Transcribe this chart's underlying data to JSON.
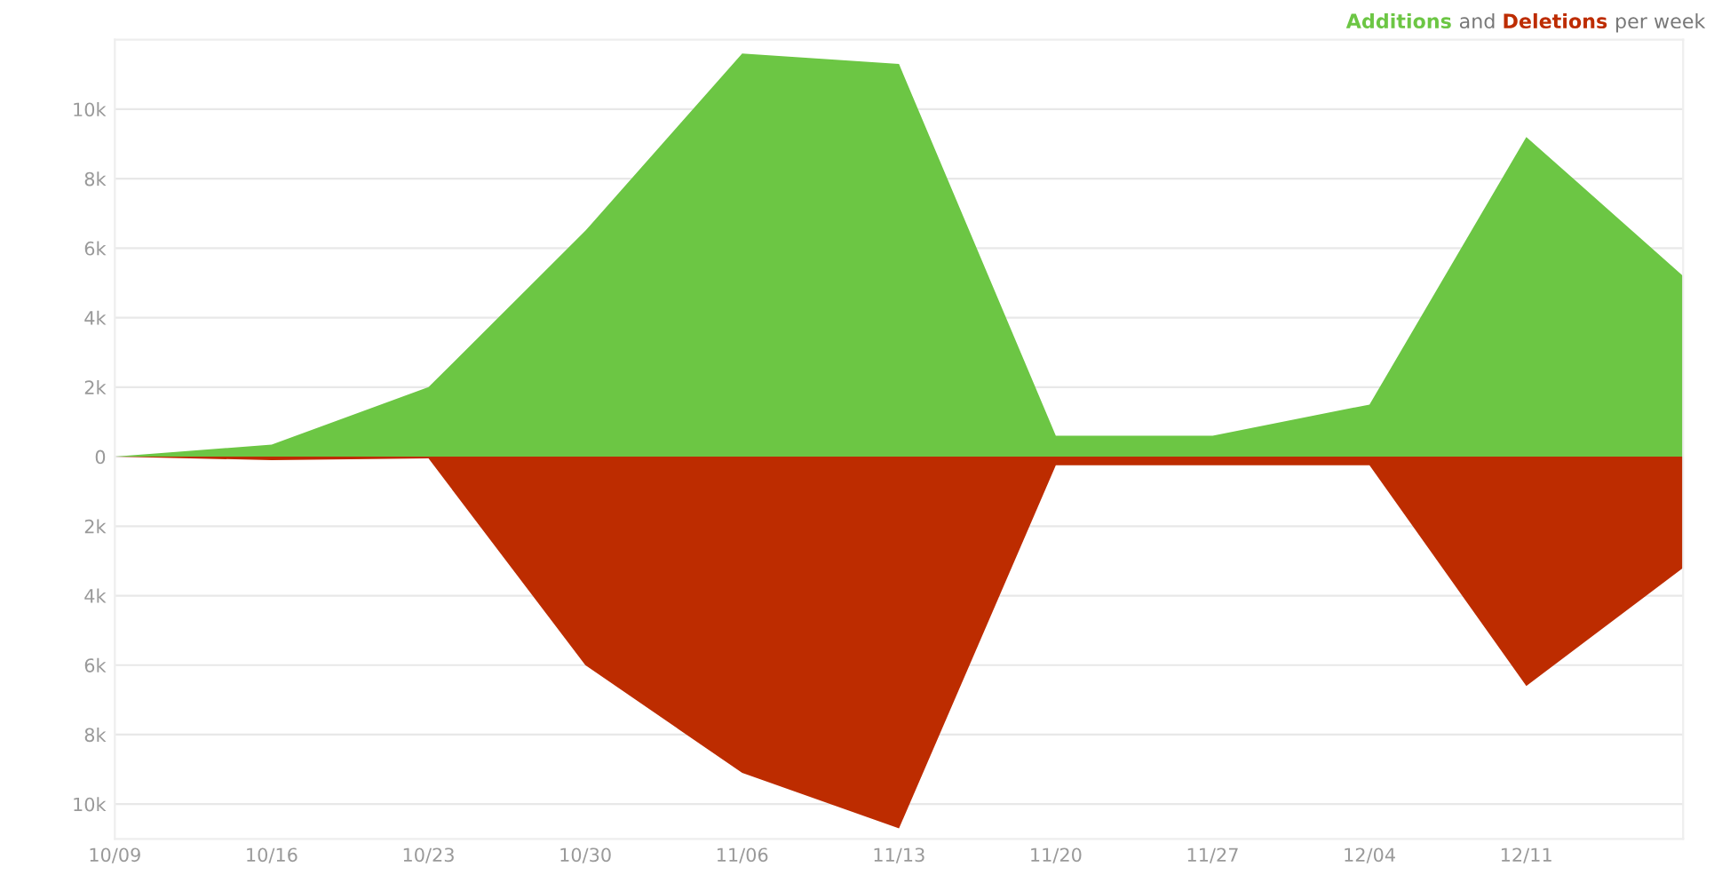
{
  "chart_data": {
    "type": "area",
    "categories": [
      "10/09",
      "10/16",
      "10/23",
      "10/30",
      "11/06",
      "11/13",
      "11/20",
      "11/27",
      "12/04",
      "12/11",
      null
    ],
    "series": [
      {
        "name": "Additions",
        "color": "#6cc644",
        "values": [
          0,
          350,
          2000,
          6500,
          11600,
          11300,
          600,
          600,
          1500,
          9200,
          5200
        ]
      },
      {
        "name": "Deletions",
        "color": "#bd2c00",
        "values": [
          0,
          -100,
          -50,
          -6000,
          -9100,
          -10700,
          -250,
          -250,
          -250,
          -6600,
          -3200
        ]
      }
    ],
    "annotations": [
      "and",
      "per week"
    ],
    "ylim": [
      -11000,
      12000
    ],
    "yticks": [
      {
        "value": -10000,
        "label": "10k"
      },
      {
        "value": -8000,
        "label": "8k"
      },
      {
        "value": -6000,
        "label": "6k"
      },
      {
        "value": -4000,
        "label": "4k"
      },
      {
        "value": -2000,
        "label": "2k"
      },
      0,
      {
        "value": 2000,
        "label": "2k"
      },
      {
        "value": 4000,
        "label": "4k"
      },
      {
        "value": 6000,
        "label": "6k"
      },
      {
        "value": 8000,
        "label": "8k"
      },
      {
        "value": 10000,
        "label": "10k"
      }
    ],
    "grid": "y",
    "legend": "top right"
  }
}
